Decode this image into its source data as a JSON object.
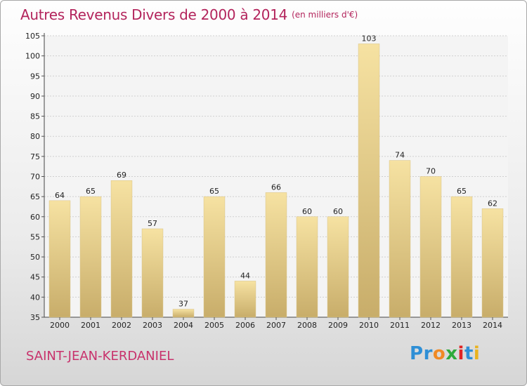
{
  "title": {
    "main": "Autres Revenus Divers de 2000 à 2014",
    "unit": "(en milliers d'€)"
  },
  "commune": "SAINT-JEAN-KERDANIEL",
  "logo": {
    "letters": [
      "P",
      "r",
      "o",
      "x",
      "i",
      "t",
      "i"
    ]
  },
  "colors": {
    "title": "#b3245c",
    "commune": "#c8326c",
    "bar_light": "#f6e2a2",
    "bar_dark": "#c8ad6a",
    "logo": [
      "#2e8fd6",
      "#2e8fd6",
      "#f08a24",
      "#2eaa3a",
      "#e02424",
      "#2e8fd6",
      "#e9b320"
    ]
  },
  "chart_data": {
    "type": "bar",
    "categories": [
      "2000",
      "2001",
      "2002",
      "2003",
      "2004",
      "2005",
      "2006",
      "2007",
      "2008",
      "2009",
      "2010",
      "2011",
      "2012",
      "2013",
      "2014"
    ],
    "values": [
      64,
      65,
      69,
      57,
      37,
      65,
      44,
      66,
      60,
      60,
      103,
      74,
      70,
      65,
      62
    ],
    "ylim": [
      35,
      105
    ],
    "yticks": [
      35,
      40,
      45,
      50,
      55,
      60,
      65,
      70,
      75,
      80,
      85,
      90,
      95,
      100,
      105
    ],
    "grid": true,
    "data_labels": true
  }
}
